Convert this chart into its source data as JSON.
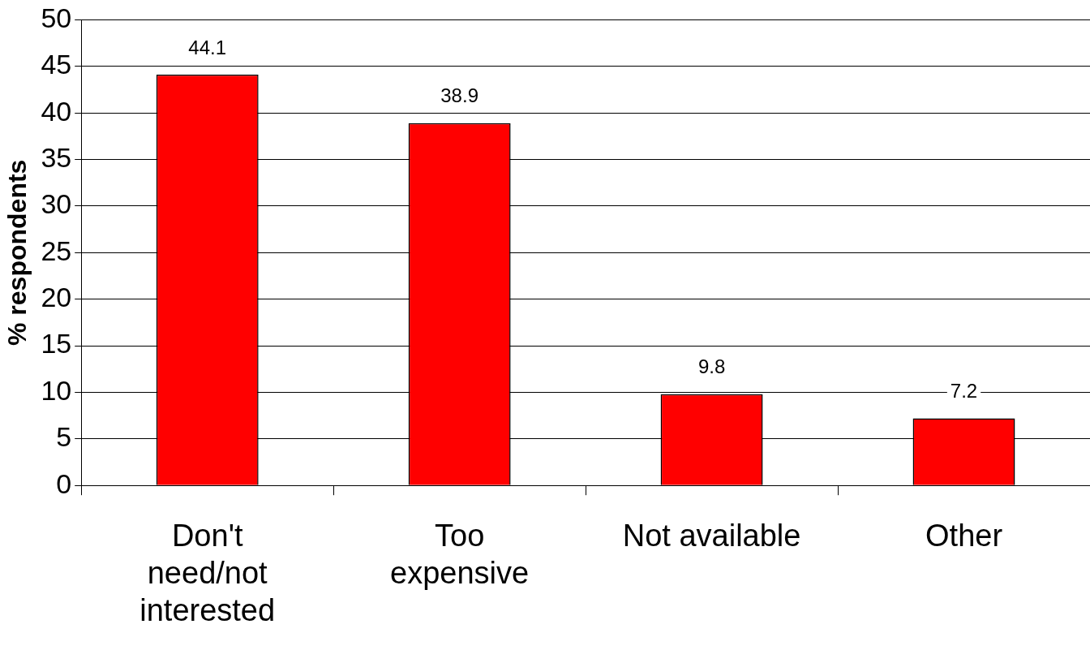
{
  "chart_data": {
    "type": "bar",
    "ylabel": "% respondents",
    "categories": [
      "Don't need/not interested",
      "Too expensive",
      "Not available",
      "Other"
    ],
    "values": [
      44.1,
      38.9,
      9.8,
      7.2
    ],
    "color": "#ff0000",
    "ylim": [
      0,
      50
    ],
    "yticks": [
      0,
      5,
      10,
      15,
      20,
      25,
      30,
      35,
      40,
      45,
      50
    ],
    "grid": "y",
    "legend": false,
    "data_labels": true
  }
}
